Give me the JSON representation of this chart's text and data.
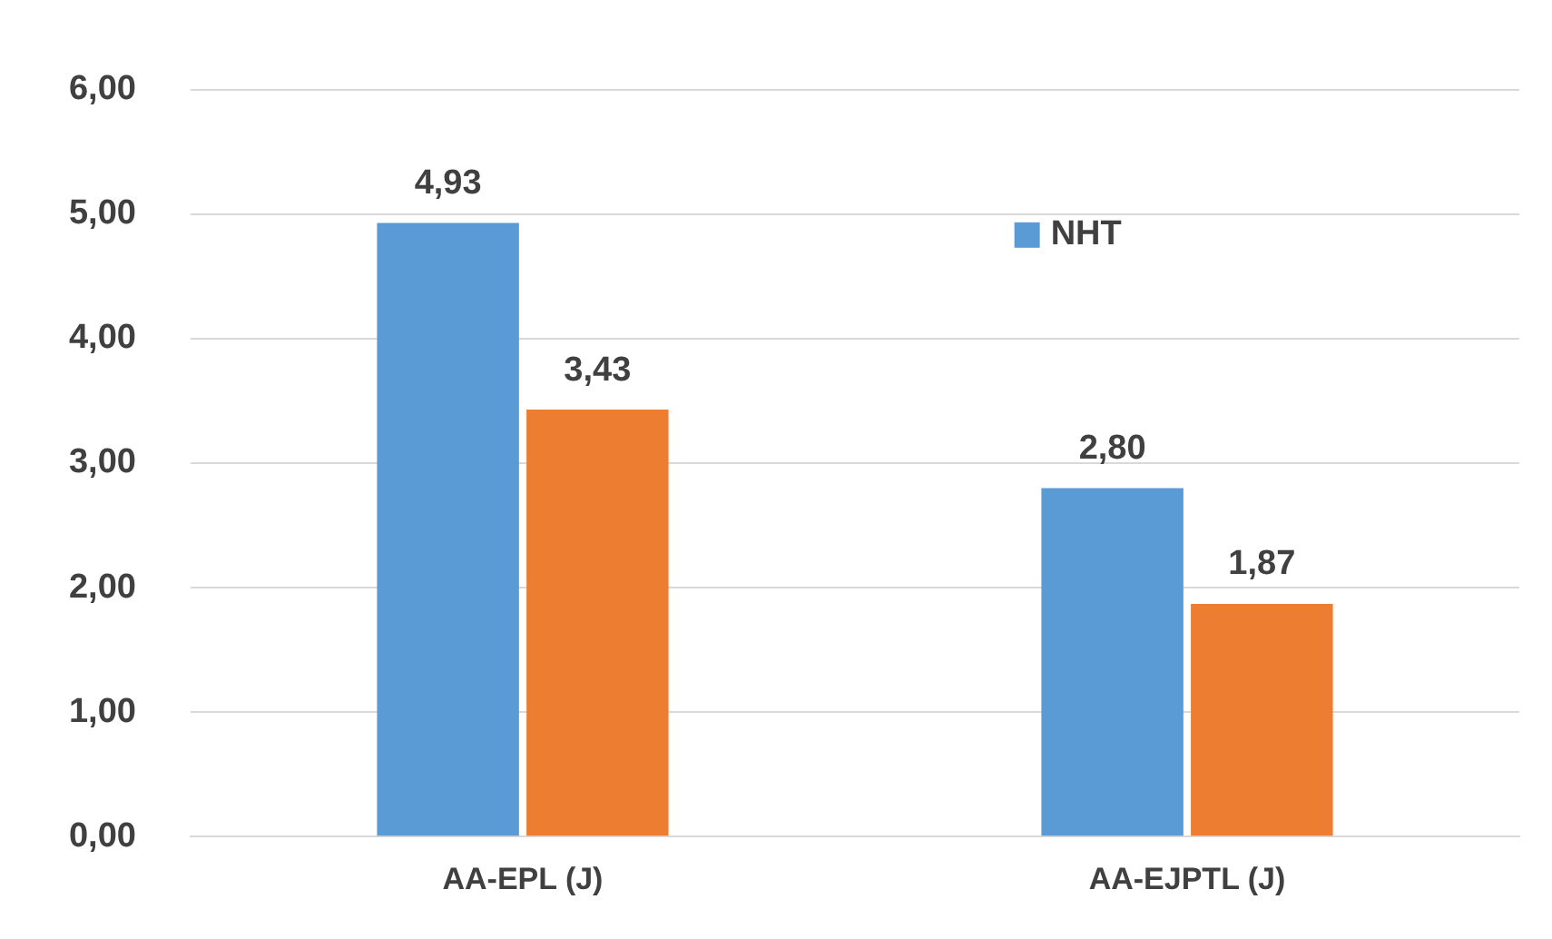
{
  "chart_data": {
    "type": "bar",
    "categories": [
      "AA-EPL (J)",
      "AA-EJPTL (J)"
    ],
    "series": [
      {
        "name": "NHT",
        "color": "#5b9bd5",
        "values": [
          4.93,
          2.8
        ],
        "value_labels": [
          "4,93",
          "2,80"
        ]
      },
      {
        "color": "#ed7d31",
        "values": [
          3.43,
          1.87
        ],
        "value_labels": [
          "3,43",
          "1,87"
        ]
      }
    ],
    "ylim": [
      0,
      6
    ],
    "yticks": [
      {
        "value": 0,
        "label": "0,00"
      },
      {
        "value": 1,
        "label": "1,00"
      },
      {
        "value": 2,
        "label": "2,00"
      },
      {
        "value": 3,
        "label": "3,00"
      },
      {
        "value": 4,
        "label": "4,00"
      },
      {
        "value": 5,
        "label": "5,00"
      },
      {
        "value": 6,
        "label": "6,00"
      }
    ],
    "grid": "y",
    "legend": "top right"
  }
}
